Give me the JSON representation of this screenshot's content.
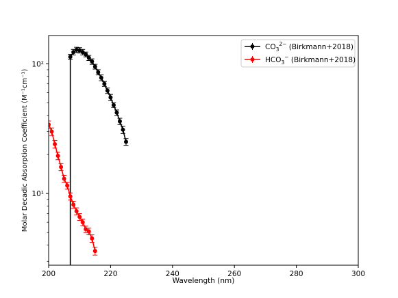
{
  "chart_data": {
    "type": "line",
    "title": "",
    "xlabel": "Wavelength (nm)",
    "ylabel": "Molar Decadic Absorption Coefficient (M⁻¹cm⁻¹)",
    "xlim": [
      200,
      300
    ],
    "ylim": [
      2.8,
      165
    ],
    "yscale": "log",
    "grid": false,
    "legend_position": "top-right",
    "x_ticks": [
      200,
      220,
      240,
      260,
      280,
      300
    ],
    "x_tick_labels": [
      "200",
      "220",
      "240",
      "260",
      "280",
      "300"
    ],
    "y_ticks": [
      10,
      100
    ],
    "y_tick_labels": [
      "10¹",
      "10²"
    ],
    "series": [
      {
        "name": "CO₃²⁻ (Birkmann+2018)",
        "legend_main": "CO",
        "legend_sub": "3",
        "legend_sup": "2−",
        "legend_rest": "  (Birkmann+2018)",
        "color": "#000000",
        "x": [
          207,
          208,
          209,
          210,
          211,
          212,
          213,
          214,
          215,
          216,
          217,
          218,
          219,
          220,
          221,
          222,
          223,
          224,
          225
        ],
        "y": [
          113,
          123,
          128,
          127,
          123,
          118,
          111,
          104,
          95,
          86,
          78,
          70,
          62,
          55,
          48,
          42,
          36,
          31,
          25
        ],
        "err": [
          5,
          6,
          6,
          6,
          6,
          5,
          5,
          5,
          4,
          4,
          4,
          3,
          3,
          3,
          2,
          2,
          2,
          2,
          1.5
        ]
      },
      {
        "name": "HCO₃⁻ (Birkmann+2018)",
        "legend_main": "HCO",
        "legend_sub": "3",
        "legend_sup": "−",
        "legend_rest": "  (Birkmann+2018)",
        "color": "#ff0000",
        "x": [
          200,
          201,
          202,
          203,
          204,
          205,
          206,
          207,
          208,
          209,
          210,
          211,
          212,
          213,
          214,
          215
        ],
        "y": [
          34,
          30,
          24,
          19.5,
          16,
          13,
          11.5,
          9.5,
          8.2,
          7.3,
          6.6,
          6.0,
          5.3,
          5.1,
          4.5,
          3.6
        ],
        "err": [
          2.2,
          2,
          1.6,
          1.3,
          1.0,
          0.8,
          0.7,
          0.6,
          0.5,
          0.45,
          0.4,
          0.35,
          0.3,
          0.3,
          0.3,
          0.25
        ]
      }
    ],
    "vertical_line": {
      "x": 207,
      "y_from": 2.8,
      "y_to": 113,
      "color": "#000000"
    }
  }
}
